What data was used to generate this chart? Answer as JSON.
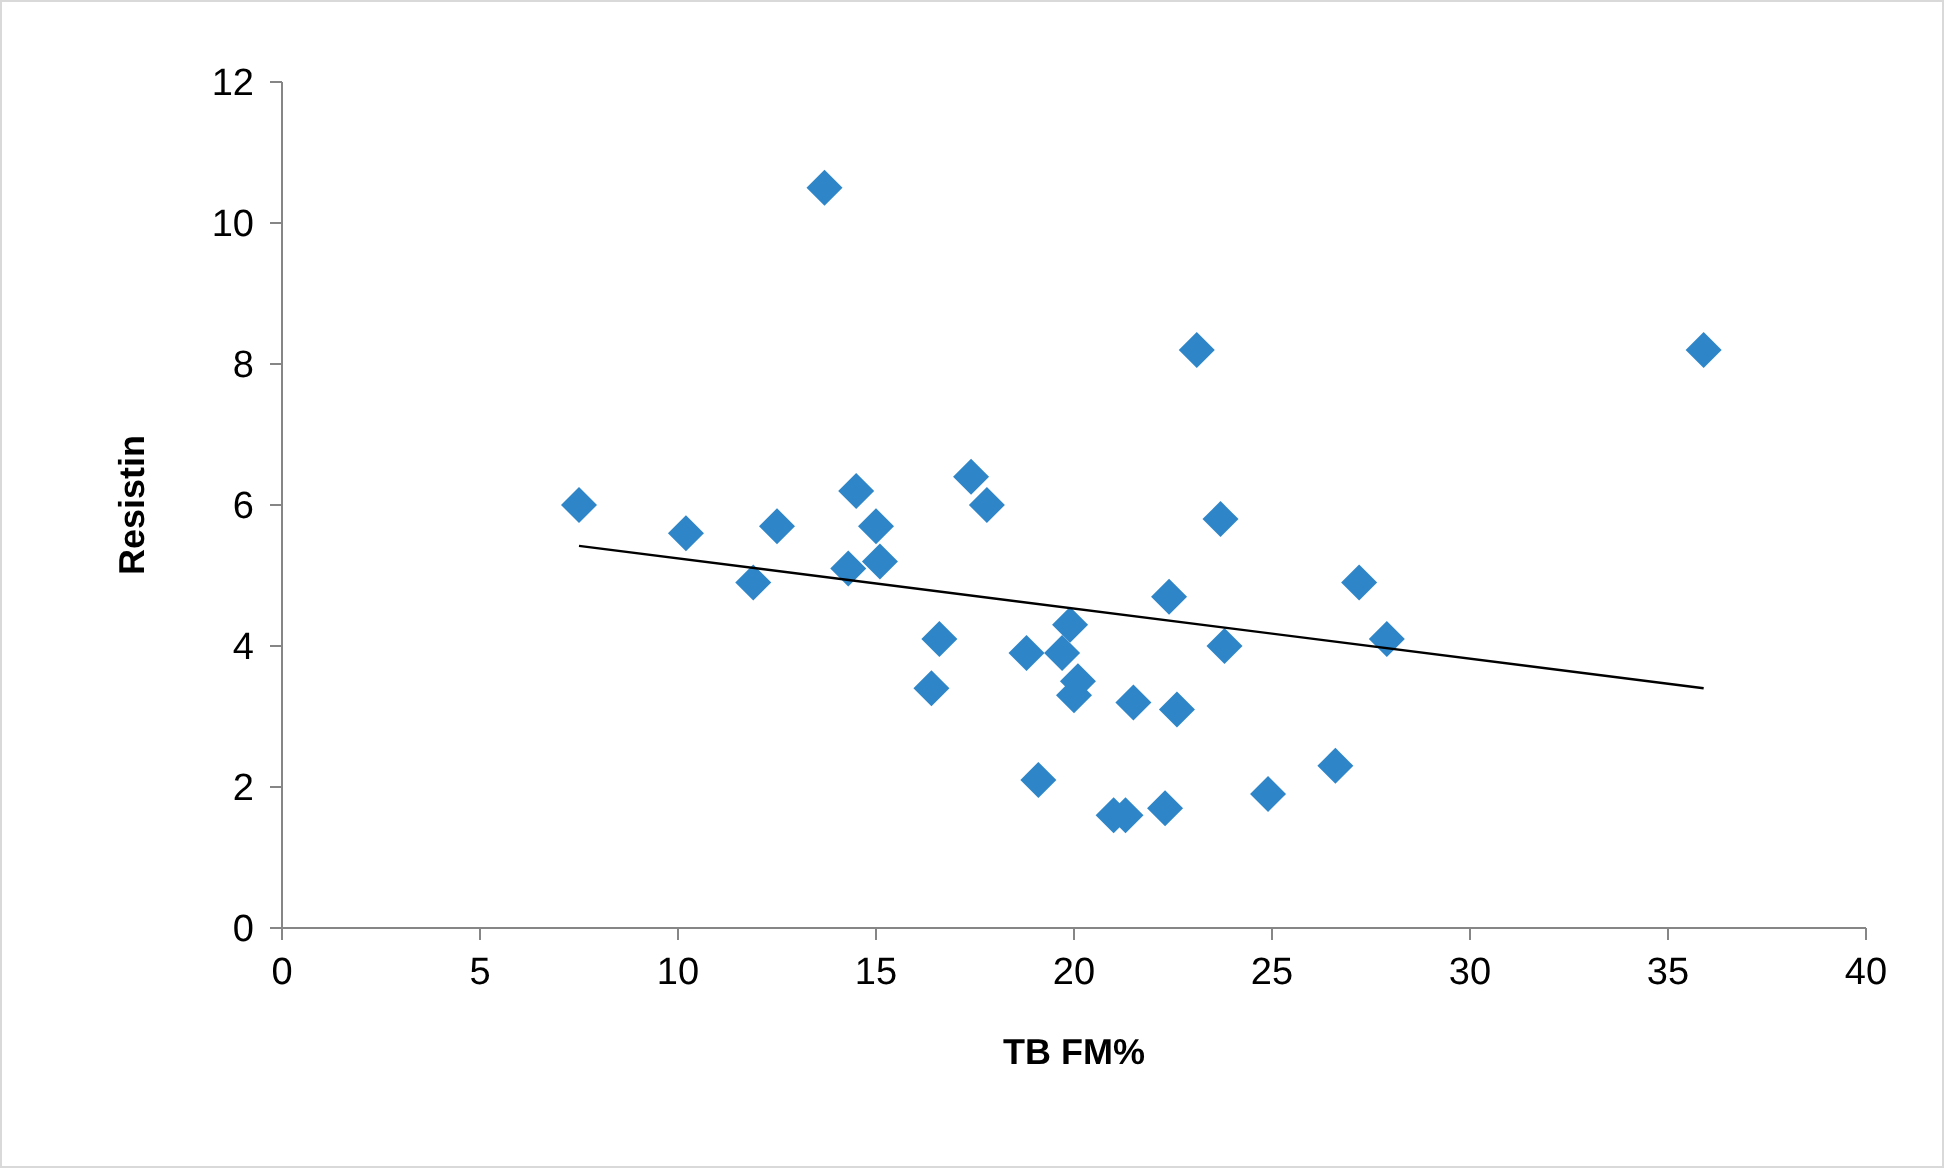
{
  "chart_data": {
    "type": "scatter",
    "xlabel": "TB FM%",
    "ylabel": "Resistin",
    "xlim": [
      0,
      40
    ],
    "xticks": [
      0,
      5,
      10,
      15,
      20,
      25,
      30,
      35,
      40
    ],
    "ylim": [
      0,
      12
    ],
    "yticks": [
      0,
      2,
      4,
      6,
      8,
      10,
      12
    ],
    "grid": false,
    "series": [
      {
        "marker": "diamond",
        "color": "#2e86c8",
        "x": [
          7.5,
          10.2,
          11.9,
          12.5,
          13.7,
          14.3,
          14.5,
          15.0,
          15.1,
          16.6,
          16.4,
          17.4,
          17.8,
          18.8,
          19.1,
          19.7,
          19.9,
          20.1,
          20.0,
          21.0,
          21.3,
          21.5,
          22.3,
          22.4,
          22.6,
          23.1,
          23.7,
          23.8,
          24.9,
          26.6,
          27.2,
          27.9,
          35.9
        ],
        "values": [
          6.0,
          5.6,
          4.9,
          5.7,
          10.5,
          5.1,
          6.2,
          5.7,
          5.2,
          4.1,
          3.4,
          6.4,
          6.0,
          3.9,
          2.1,
          3.9,
          4.3,
          3.5,
          3.3,
          1.6,
          1.6,
          3.2,
          1.7,
          4.7,
          3.1,
          8.2,
          5.8,
          4.0,
          1.9,
          2.3,
          4.9,
          4.1,
          8.2
        ]
      },
      {
        "type": "line",
        "color": "#000000",
        "x": [
          7.5,
          35.9
        ],
        "values": [
          5.42,
          3.4
        ]
      }
    ]
  }
}
